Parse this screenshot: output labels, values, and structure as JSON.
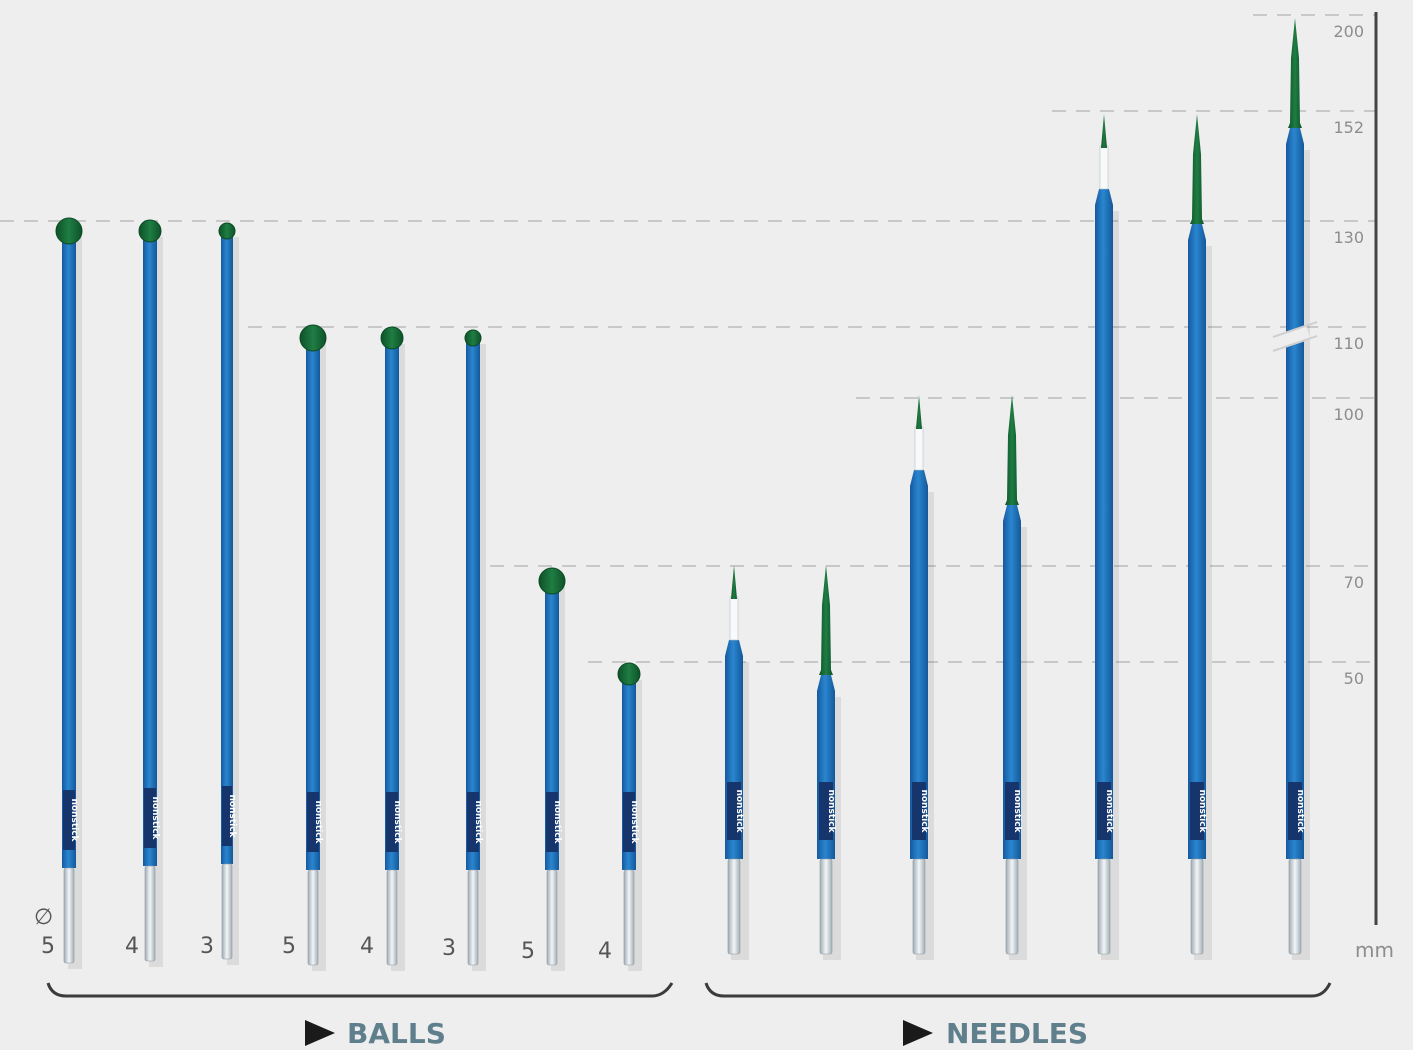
{
  "axis": {
    "unit": "mm",
    "ticks": [
      {
        "value": 200,
        "label": "200"
      },
      {
        "value": 152,
        "label": "152"
      },
      {
        "value": 130,
        "label": "130"
      },
      {
        "value": 110,
        "label": "110"
      },
      {
        "value": 100,
        "label": "100"
      },
      {
        "value": 70,
        "label": "70"
      },
      {
        "value": 50,
        "label": "50"
      }
    ]
  },
  "diameter_symbol": "∅",
  "label_text": "nonstick",
  "colors": {
    "shaft": "#1c6fb5",
    "tip": "#136836",
    "metal": "#c9d1d6",
    "label": "#15356c"
  },
  "groups": {
    "balls": {
      "label": "BALLS"
    },
    "needles": {
      "label": "NEEDLES"
    }
  },
  "balls": [
    {
      "length": 130,
      "diameter": "5"
    },
    {
      "length": 130,
      "diameter": "4"
    },
    {
      "length": 130,
      "diameter": "3"
    },
    {
      "length": 110,
      "diameter": "5"
    },
    {
      "length": 110,
      "diameter": "4"
    },
    {
      "length": 110,
      "diameter": "3"
    },
    {
      "length": 70,
      "diameter": "5"
    },
    {
      "length": 50,
      "diameter": "4"
    }
  ],
  "needles": [
    {
      "length": 70,
      "insulated": true
    },
    {
      "length": 70,
      "insulated": false
    },
    {
      "length": 100,
      "insulated": true
    },
    {
      "length": 100,
      "insulated": false
    },
    {
      "length": 152,
      "insulated": true
    },
    {
      "length": 152,
      "insulated": false
    },
    {
      "length": 200,
      "insulated": false,
      "axis_break": true
    }
  ]
}
